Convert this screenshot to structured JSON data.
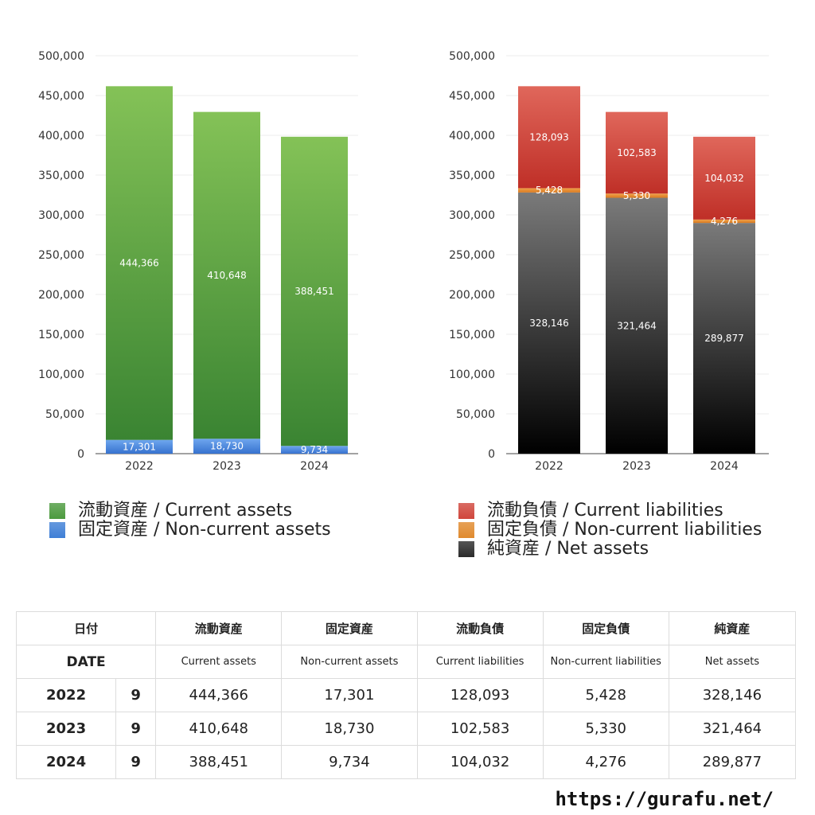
{
  "chart_data": [
    {
      "type": "bar",
      "stacked": true,
      "categories": [
        "2022",
        "2023",
        "2024"
      ],
      "series": [
        {
          "name": "固定資産 / Non-current assets",
          "values": [
            17301,
            18730,
            9734
          ],
          "color": "#3f7fd6"
        },
        {
          "name": "流動資産 / Current assets",
          "values": [
            444366,
            410648,
            388451
          ],
          "color": "#4c9a3e"
        }
      ],
      "ylim": [
        0,
        500000
      ],
      "yticks": [
        "0",
        "50,000",
        "100,000",
        "150,000",
        "200,000",
        "250,000",
        "300,000",
        "350,000",
        "400,000",
        "450,000",
        "500,000"
      ],
      "grid": true,
      "legend_position": "bottom"
    },
    {
      "type": "bar",
      "stacked": true,
      "categories": [
        "2022",
        "2023",
        "2024"
      ],
      "series": [
        {
          "name": "純資産 / Net assets",
          "values": [
            328146,
            321464,
            289877
          ],
          "color": "#2b2b2b"
        },
        {
          "name": "固定負債 / Non-current liabilities",
          "values": [
            5428,
            5330,
            4276
          ],
          "color": "#e08a2e"
        },
        {
          "name": "流動負債 / Current liabilities",
          "values": [
            128093,
            102583,
            104032
          ],
          "color": "#d0463c"
        }
      ],
      "ylim": [
        0,
        500000
      ],
      "yticks": [
        "0",
        "50,000",
        "100,000",
        "150,000",
        "200,000",
        "250,000",
        "300,000",
        "350,000",
        "400,000",
        "450,000",
        "500,000"
      ],
      "grid": true,
      "legend_position": "bottom"
    }
  ],
  "legend_left": [
    {
      "label": "流動資産 / Current assets",
      "color": "#4c9a3e"
    },
    {
      "label": "固定資産 / Non-current assets",
      "color": "#3f7fd6"
    }
  ],
  "legend_right": [
    {
      "label": "流動負債 / Current liabilities",
      "color": "#d0463c"
    },
    {
      "label": "固定負債 / Non-current liabilities",
      "color": "#e08a2e"
    },
    {
      "label": "純資産 / Net assets",
      "color": "#2b2b2b"
    }
  ],
  "table": {
    "header_jp": {
      "date": "日付",
      "cols": [
        "流動資産",
        "固定資産",
        "流動負債",
        "固定負債",
        "純資産"
      ]
    },
    "header_en": {
      "date": "DATE",
      "cols": [
        "Current assets",
        "Non-current assets",
        "Current liabilities",
        "Non-current liabilities",
        "Net assets"
      ]
    },
    "rows": [
      {
        "year": "2022",
        "month": "9",
        "values": [
          "444,366",
          "17,301",
          "128,093",
          "5,428",
          "328,146"
        ]
      },
      {
        "year": "2023",
        "month": "9",
        "values": [
          "410,648",
          "18,730",
          "102,583",
          "5,330",
          "321,464"
        ]
      },
      {
        "year": "2024",
        "month": "9",
        "values": [
          "388,451",
          "9,734",
          "104,032",
          "4,276",
          "289,877"
        ]
      }
    ]
  },
  "footer": {
    "url": "https://gurafu.net/"
  }
}
